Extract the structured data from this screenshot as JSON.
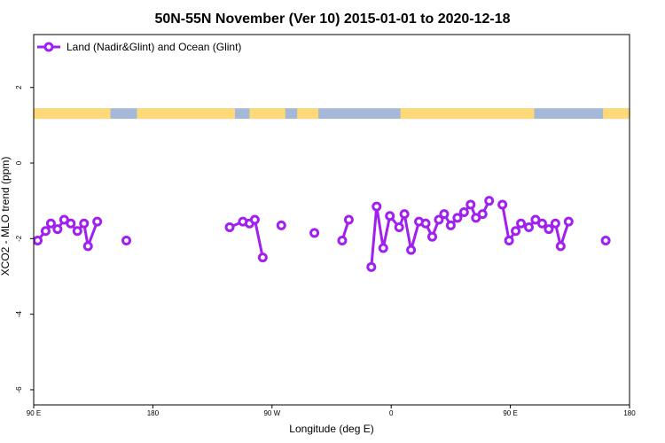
{
  "chart_data": {
    "type": "line",
    "title": "50N-55N November (Ver 10)   2015-01-01 to 2020-12-18",
    "xlabel": "Longitude (deg E)",
    "ylabel": "XCO2 - MLO trend (ppm)",
    "xlim": [
      90,
      540
    ],
    "ylim": [
      -6.4,
      3.4
    ],
    "x_ticks": [
      {
        "value": 90,
        "label": "90 E"
      },
      {
        "value": 180,
        "label": "180"
      },
      {
        "value": 270,
        "label": "90 W"
      },
      {
        "value": 360,
        "label": "0"
      },
      {
        "value": 450,
        "label": "90 E"
      },
      {
        "value": 540,
        "label": "180"
      }
    ],
    "y_ticks": [
      {
        "value": 2,
        "label": "2"
      },
      {
        "value": 0,
        "label": "0"
      },
      {
        "value": -2,
        "label": "-2"
      },
      {
        "value": -4,
        "label": "-4"
      },
      {
        "value": -6,
        "label": "-6"
      }
    ],
    "land_band": {
      "y_top": 1.45,
      "y_bottom": 1.17,
      "land_color": "#fdd97a",
      "ocean_color": "#a5b8d6"
    },
    "series": [
      {
        "name": "Land (Nadir&Glint) and Ocean (Glint)",
        "color": "#a020f0",
        "points": [
          [
            93,
            -2.05
          ],
          [
            99,
            -1.8
          ],
          [
            103,
            -1.6
          ],
          [
            108,
            -1.75
          ],
          [
            113,
            -1.5
          ],
          [
            118,
            -1.6
          ],
          [
            123,
            -1.8
          ],
          [
            128,
            -1.6
          ],
          [
            131,
            -2.2
          ],
          [
            138,
            -1.55
          ],
          null,
          [
            160,
            -2.05
          ],
          null,
          [
            238,
            -1.7
          ],
          [
            248,
            -1.55
          ],
          [
            253,
            -1.6
          ],
          [
            257,
            -1.5
          ],
          [
            263,
            -2.5
          ],
          null,
          [
            277,
            -1.65
          ],
          null,
          [
            302,
            -1.85
          ],
          null,
          [
            323,
            -2.05
          ],
          [
            328,
            -1.5
          ],
          null,
          [
            345,
            -2.75
          ],
          [
            349,
            -1.15
          ],
          [
            354,
            -2.25
          ],
          [
            359,
            -1.4
          ],
          [
            366,
            -1.7
          ],
          [
            370,
            -1.35
          ],
          [
            375,
            -2.3
          ],
          [
            381,
            -1.55
          ],
          [
            386,
            -1.6
          ],
          [
            391,
            -1.95
          ],
          [
            396,
            -1.5
          ],
          [
            400,
            -1.35
          ],
          [
            405,
            -1.65
          ],
          [
            410,
            -1.45
          ],
          [
            415,
            -1.3
          ],
          [
            420,
            -1.1
          ],
          [
            424,
            -1.45
          ],
          [
            429,
            -1.35
          ],
          [
            434,
            -1.0
          ],
          null,
          [
            444,
            -1.1
          ],
          [
            449,
            -2.05
          ],
          [
            454,
            -1.8
          ],
          [
            458,
            -1.6
          ],
          [
            464,
            -1.7
          ],
          [
            469,
            -1.5
          ],
          [
            474,
            -1.6
          ],
          [
            479,
            -1.75
          ],
          [
            484,
            -1.6
          ],
          [
            488,
            -2.2
          ],
          [
            494,
            -1.55
          ],
          null,
          [
            522,
            -2.05
          ]
        ]
      }
    ],
    "legend_position": "top-left"
  }
}
